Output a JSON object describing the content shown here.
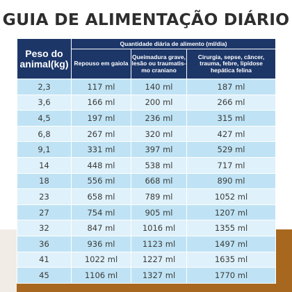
{
  "title": "GUIA DE ALIMENTAÇÃO DIÁRIO",
  "table": {
    "weight_header": "Peso do animal(kg)",
    "group_header": "Quantidade diária de alimento (ml/dia)",
    "column_headers": [
      "Repouso em gaiola",
      "Queimadura grave, lesão ou traumatis- mo craniano",
      "Cirurgia, sepse, câncer, trauma, febre, lipídose hepática felina"
    ],
    "rows": [
      [
        "2,3",
        "117 ml",
        "140 ml",
        "187 ml"
      ],
      [
        "3,6",
        "166 ml",
        "200 ml",
        "266 ml"
      ],
      [
        "4,5",
        "197 ml",
        "236 ml",
        "315 ml"
      ],
      [
        "6,8",
        "267 ml",
        "320 ml",
        "427 ml"
      ],
      [
        "9,1",
        "331 ml",
        "397 ml",
        "529 ml"
      ],
      [
        "14",
        "448 ml",
        "538 ml",
        "717 ml"
      ],
      [
        "18",
        "556 ml",
        "668 ml",
        "890 ml"
      ],
      [
        "23",
        "658 ml",
        "789 ml",
        "1052 ml"
      ],
      [
        "27",
        "754 ml",
        "905 ml",
        "1207 ml"
      ],
      [
        "32",
        "847 ml",
        "1016 ml",
        "1355 ml"
      ],
      [
        "36",
        "936 ml",
        "1123 ml",
        "1497 ml"
      ],
      [
        "41",
        "1022 ml",
        "1227 ml",
        "1635 ml"
      ],
      [
        "45",
        "1106 ml",
        "1327 ml",
        "1770 ml"
      ]
    ]
  },
  "colors": {
    "header_bg": "#1c3668",
    "row_odd": "#bfe3f4",
    "row_even": "#dff1fa",
    "floor": "#a8671f"
  }
}
